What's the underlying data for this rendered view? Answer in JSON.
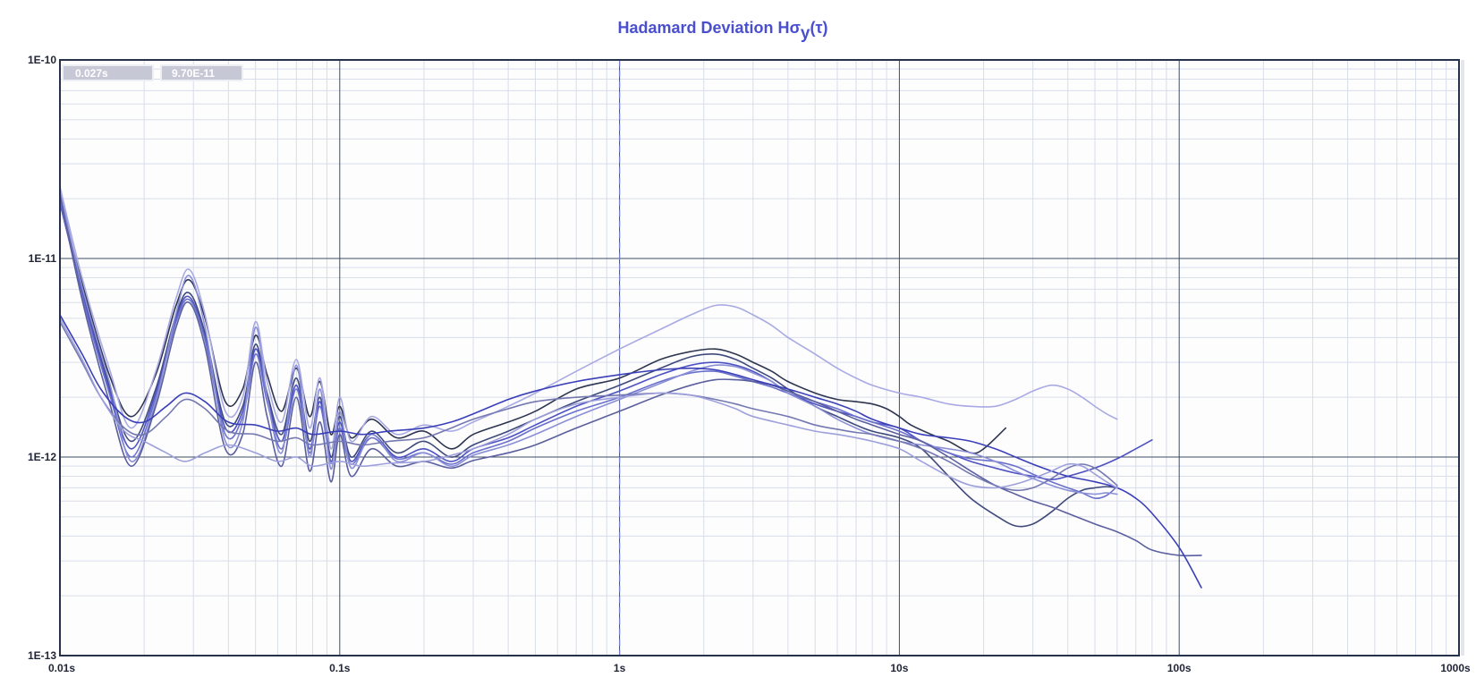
{
  "colors": {
    "title": "#4a4fd0",
    "plot_bg": "#fdfdfe",
    "major_grid": "#3d4d63",
    "minor_grid": "#d9dde9",
    "frame": "#27324a",
    "cursor": "#7a80c8",
    "readout_bg": "#c6c8d6",
    "readout_border": "#eeeff4",
    "series_palette": [
      "#2e3550",
      "#3f4a7a",
      "#4d52c2",
      "#6a70cc",
      "#8a8fd6",
      "#a9aae3",
      "#5b5f9e",
      "#3a3fb8",
      "#7478b0",
      "#9ea0dc",
      "#50557e",
      "#6466c6"
    ]
  },
  "readout": {
    "tau": "0.027s",
    "value": "9.70E-11"
  },
  "chart_data": {
    "type": "line",
    "title_main": "Hadamard Deviation H",
    "title_sigma": "σ",
    "title_sub": "y",
    "title_arg": "(τ)",
    "x_scale": "log",
    "y_scale": "log",
    "xlim": [
      0.01,
      1000
    ],
    "ylim": [
      1e-13,
      1e-10
    ],
    "x_ticks": [
      {
        "value": 0.01,
        "label": "0.01s"
      },
      {
        "value": 0.1,
        "label": "0.1s"
      },
      {
        "value": 1,
        "label": "1s"
      },
      {
        "value": 10,
        "label": "10s"
      },
      {
        "value": 100,
        "label": "100s"
      },
      {
        "value": 1000,
        "label": "1000s"
      }
    ],
    "y_ticks": [
      {
        "value": 1e-13,
        "label": "1E-13"
      },
      {
        "value": 1e-12,
        "label": "1E-12"
      },
      {
        "value": 1e-11,
        "label": "1E-11"
      },
      {
        "value": 1e-10,
        "label": "1E-10"
      }
    ],
    "grid": true,
    "cursor_x": 1,
    "series": [
      {
        "x": [
          0.01,
          0.012,
          0.015,
          0.018,
          0.022,
          0.026,
          0.029,
          0.033,
          0.039,
          0.045,
          0.05,
          0.055,
          0.062,
          0.07,
          0.078,
          0.085,
          0.093,
          0.1,
          0.11,
          0.13,
          0.16,
          0.2,
          0.25,
          0.3,
          0.4,
          0.5,
          0.7,
          1,
          1.4,
          1.8,
          2.2,
          2.6,
          3,
          3.5,
          4,
          5,
          6,
          7,
          8,
          9,
          10,
          11,
          13,
          15,
          18,
          20,
          24
        ],
        "y": [
          2e-11,
          7.5e-12,
          2.6e-12,
          1.6e-12,
          2.6e-12,
          5.8e-12,
          7.8e-12,
          5e-12,
          1.9e-12,
          2.2e-12,
          4.1e-12,
          2.6e-12,
          1.7e-12,
          2.8e-12,
          1.6e-12,
          2.4e-12,
          1.3e-12,
          1.8e-12,
          1.25e-12,
          1.55e-12,
          1.25e-12,
          1.35e-12,
          1.1e-12,
          1.3e-12,
          1.5e-12,
          1.7e-12,
          2.2e-12,
          2.5e-12,
          3.1e-12,
          3.4e-12,
          3.5e-12,
          3.3e-12,
          3e-12,
          2.7e-12,
          2.4e-12,
          2.1e-12,
          1.95e-12,
          1.9e-12,
          1.85e-12,
          1.75e-12,
          1.6e-12,
          1.45e-12,
          1.3e-12,
          1.2e-12,
          1.05e-12,
          1.1e-12,
          1.4e-12
        ]
      },
      {
        "x": [
          0.01,
          0.012,
          0.015,
          0.018,
          0.022,
          0.026,
          0.029,
          0.033,
          0.039,
          0.045,
          0.05,
          0.055,
          0.062,
          0.07,
          0.078,
          0.085,
          0.093,
          0.1,
          0.11,
          0.13,
          0.16,
          0.2,
          0.25,
          0.3,
          0.4,
          0.5,
          0.7,
          1,
          1.4,
          1.8,
          2.2,
          2.6,
          3,
          3.5,
          4,
          5,
          6,
          7,
          8,
          10,
          12,
          15,
          18,
          22,
          26,
          30,
          35,
          40,
          45,
          50,
          55,
          60
        ],
        "y": [
          2.1e-11,
          7e-12,
          2.3e-12,
          1.2e-12,
          2.2e-12,
          5.2e-12,
          6.7e-12,
          4.2e-12,
          1.5e-12,
          1.8e-12,
          3.7e-12,
          2.1e-12,
          1.3e-12,
          2.5e-12,
          1.2e-12,
          2e-12,
          1e-12,
          1.6e-12,
          1e-12,
          1.35e-12,
          1.05e-12,
          1.2e-12,
          1e-12,
          1.15e-12,
          1.35e-12,
          1.55e-12,
          1.9e-12,
          2.3e-12,
          2.8e-12,
          3.2e-12,
          3.3e-12,
          3.1e-12,
          2.8e-12,
          2.5e-12,
          2.2e-12,
          1.8e-12,
          1.6e-12,
          1.45e-12,
          1.35e-12,
          1.25e-12,
          1.1e-12,
          8e-13,
          6.2e-13,
          5.1e-13,
          4.5e-13,
          4.6e-13,
          5.3e-13,
          6.2e-13,
          6.8e-13,
          7e-13,
          7.1e-13,
          7e-13
        ]
      },
      {
        "x": [
          0.01,
          0.012,
          0.015,
          0.018,
          0.022,
          0.026,
          0.029,
          0.033,
          0.039,
          0.045,
          0.05,
          0.055,
          0.062,
          0.07,
          0.078,
          0.085,
          0.093,
          0.1,
          0.11,
          0.13,
          0.16,
          0.2,
          0.25,
          0.3,
          0.4,
          0.5,
          0.7,
          1,
          1.4,
          1.8,
          2.2,
          2.6,
          3,
          3.5,
          4,
          5,
          6,
          7,
          8,
          10,
          12,
          15,
          18,
          22,
          26,
          30,
          35,
          40,
          50,
          60,
          70,
          80
        ],
        "y": [
          1.9e-11,
          6.8e-12,
          2.2e-12,
          1.1e-12,
          2.1e-12,
          5e-12,
          6.4e-12,
          4e-12,
          1.4e-12,
          1.7e-12,
          3.5e-12,
          2e-12,
          1.2e-12,
          2.3e-12,
          1.1e-12,
          1.9e-12,
          9.5e-13,
          1.5e-12,
          9.5e-13,
          1.3e-12,
          1e-12,
          1.1e-12,
          9.5e-13,
          1.1e-12,
          1.25e-12,
          1.45e-12,
          1.8e-12,
          2.15e-12,
          2.6e-12,
          2.9e-12,
          3e-12,
          2.9e-12,
          2.7e-12,
          2.4e-12,
          2.1e-12,
          1.85e-12,
          1.7e-12,
          1.6e-12,
          1.5e-12,
          1.4e-12,
          1.2e-12,
          1.05e-12,
          9.5e-13,
          8.8e-13,
          8.3e-13,
          8e-13,
          7.7e-13,
          8e-13,
          8.8e-13,
          9.8e-13,
          1.1e-12,
          1.22e-12
        ]
      },
      {
        "x": [
          0.01,
          0.012,
          0.015,
          0.018,
          0.022,
          0.026,
          0.029,
          0.033,
          0.039,
          0.045,
          0.05,
          0.055,
          0.062,
          0.07,
          0.078,
          0.085,
          0.093,
          0.1,
          0.11,
          0.13,
          0.16,
          0.2,
          0.25,
          0.3,
          0.4,
          0.5,
          0.7,
          1,
          1.4,
          1.8,
          2.2,
          2.6,
          3,
          3.5,
          4,
          5,
          6,
          7,
          8,
          10,
          12,
          15,
          18,
          22,
          26,
          30,
          35,
          40,
          45,
          50,
          55,
          60
        ],
        "y": [
          2e-11,
          6.5e-12,
          2.1e-12,
          1e-12,
          2e-12,
          4.8e-12,
          6.2e-12,
          3.9e-12,
          1.3e-12,
          1.6e-12,
          3.3e-12,
          1.9e-12,
          1.1e-12,
          2.2e-12,
          1.05e-12,
          1.8e-12,
          9.3e-13,
          1.4e-12,
          9.2e-13,
          1.25e-12,
          9.8e-13,
          1.05e-12,
          9.2e-13,
          1.05e-12,
          1.2e-12,
          1.4e-12,
          1.7e-12,
          2e-12,
          2.4e-12,
          2.65e-12,
          2.7e-12,
          2.55e-12,
          2.4e-12,
          2.25e-12,
          2.1e-12,
          1.9e-12,
          1.75e-12,
          1.6e-12,
          1.5e-12,
          1.35e-12,
          1.2e-12,
          1.05e-12,
          9.8e-13,
          9.5e-13,
          9e-13,
          8.2e-13,
          7.5e-13,
          7e-13,
          6.6e-13,
          6.2e-13,
          6.4e-13,
          7.1e-13
        ]
      },
      {
        "x": [
          0.01,
          0.012,
          0.015,
          0.018,
          0.022,
          0.026,
          0.029,
          0.033,
          0.039,
          0.045,
          0.05,
          0.055,
          0.062,
          0.07,
          0.078,
          0.085,
          0.093,
          0.1,
          0.11,
          0.13,
          0.16,
          0.2,
          0.25,
          0.3,
          0.4,
          0.5,
          0.7,
          1,
          1.4,
          1.8,
          2.2,
          2.6,
          3,
          3.5,
          4,
          5,
          6,
          7,
          8,
          10,
          12,
          15,
          18,
          22,
          26,
          30,
          35,
          40,
          45,
          50,
          55,
          60
        ],
        "y": [
          2.2e-11,
          7.2e-12,
          2.4e-12,
          9.5e-13,
          1.9e-12,
          5.3e-12,
          8.2e-12,
          4.5e-12,
          1.2e-12,
          1.5e-12,
          4.5e-12,
          2e-12,
          1.05e-12,
          2.9e-12,
          1e-12,
          2.2e-12,
          8.7e-13,
          1.7e-12,
          8.8e-13,
          1.3e-12,
          9.5e-13,
          1.05e-12,
          9e-13,
          1.02e-12,
          1.15e-12,
          1.3e-12,
          1.6e-12,
          1.95e-12,
          2.35e-12,
          2.7e-12,
          2.9e-12,
          2.85e-12,
          2.65e-12,
          2.4e-12,
          2.1e-12,
          1.8e-12,
          1.55e-12,
          1.4e-12,
          1.3e-12,
          1.2e-12,
          1.15e-12,
          1.1e-12,
          1.05e-12,
          9.5e-13,
          8.5e-13,
          7.8e-13,
          7.2e-13,
          6.8e-13,
          6.6e-13,
          6.5e-13,
          6.6e-13,
          6.5e-13
        ]
      },
      {
        "x": [
          0.01,
          0.012,
          0.015,
          0.018,
          0.022,
          0.026,
          0.029,
          0.033,
          0.039,
          0.045,
          0.05,
          0.055,
          0.062,
          0.07,
          0.078,
          0.085,
          0.093,
          0.1,
          0.11,
          0.13,
          0.16,
          0.2,
          0.25,
          0.3,
          0.4,
          0.5,
          0.7,
          1,
          1.4,
          1.8,
          2.2,
          2.6,
          3,
          3.5,
          4,
          5,
          6,
          7,
          8,
          10,
          12,
          15,
          18,
          22,
          26,
          30,
          35,
          40,
          45,
          50,
          55,
          60
        ],
        "y": [
          2.3e-11,
          8e-12,
          2.8e-12,
          1.4e-12,
          2.7e-12,
          6.3e-12,
          8.8e-12,
          5.2e-12,
          1.7e-12,
          2e-12,
          4.8e-12,
          2.4e-12,
          1.5e-12,
          3.1e-12,
          1.4e-12,
          2.5e-12,
          1.1e-12,
          2e-12,
          1.2e-12,
          1.6e-12,
          1.3e-12,
          1.45e-12,
          1.35e-12,
          1.5e-12,
          1.8e-12,
          2.1e-12,
          2.7e-12,
          3.5e-12,
          4.4e-12,
          5.2e-12,
          5.8e-12,
          5.7e-12,
          5.2e-12,
          4.6e-12,
          4e-12,
          3.3e-12,
          2.8e-12,
          2.5e-12,
          2.3e-12,
          2.1e-12,
          2e-12,
          1.85e-12,
          1.8e-12,
          1.8e-12,
          1.95e-12,
          2.15e-12,
          2.3e-12,
          2.2e-12,
          2e-12,
          1.8e-12,
          1.65e-12,
          1.55e-12
        ]
      },
      {
        "x": [
          0.01,
          0.012,
          0.015,
          0.018,
          0.022,
          0.026,
          0.029,
          0.033,
          0.039,
          0.045,
          0.05,
          0.055,
          0.062,
          0.07,
          0.078,
          0.085,
          0.093,
          0.1,
          0.11,
          0.13,
          0.16,
          0.2,
          0.25,
          0.3,
          0.4,
          0.5,
          0.7,
          1,
          1.4,
          1.8,
          2.2,
          2.6,
          3,
          3.5,
          4,
          5,
          6,
          7,
          8,
          10,
          12,
          15,
          18,
          22,
          26,
          30,
          35,
          40,
          50,
          60,
          70,
          80,
          100,
          120
        ],
        "y": [
          2.1e-11,
          6.2e-12,
          1.9e-12,
          9e-13,
          1.8e-12,
          4.5e-12,
          6e-12,
          3.6e-12,
          1.1e-12,
          1.3e-12,
          3e-12,
          1.6e-12,
          9e-13,
          2e-12,
          8.5e-13,
          1.5e-12,
          7.5e-13,
          1.3e-12,
          8e-13,
          1.1e-12,
          9e-13,
          9.5e-13,
          8.8e-13,
          9.6e-13,
          1.05e-12,
          1.15e-12,
          1.4e-12,
          1.7e-12,
          2.05e-12,
          2.3e-12,
          2.45e-12,
          2.45e-12,
          2.4e-12,
          2.3e-12,
          2.15e-12,
          1.9e-12,
          1.7e-12,
          1.55e-12,
          1.45e-12,
          1.3e-12,
          1.2e-12,
          1e-12,
          8.5e-13,
          7.2e-13,
          6.5e-13,
          6e-13,
          5.6e-13,
          5.2e-13,
          4.6e-13,
          4.2e-13,
          3.8e-13,
          3.4e-13,
          3.2e-13,
          3.2e-13
        ]
      },
      {
        "x": [
          0.01,
          0.012,
          0.014,
          0.017,
          0.02,
          0.024,
          0.028,
          0.033,
          0.04,
          0.05,
          0.06,
          0.07,
          0.08,
          0.1,
          0.12,
          0.15,
          0.2,
          0.25,
          0.3,
          0.4,
          0.5,
          0.7,
          1,
          1.4,
          1.8,
          2.2,
          2.6,
          3,
          4,
          5,
          6,
          7,
          8,
          10,
          12,
          15,
          18,
          22,
          26,
          30,
          35,
          40,
          50,
          60,
          70,
          80,
          100,
          120
        ],
        "y": [
          5.2e-12,
          3.3e-12,
          2.2e-12,
          1.6e-12,
          1.5e-12,
          1.8e-12,
          2.1e-12,
          1.9e-12,
          1.5e-12,
          1.45e-12,
          1.35e-12,
          1.4e-12,
          1.3e-12,
          1.35e-12,
          1.3e-12,
          1.35e-12,
          1.4e-12,
          1.5e-12,
          1.65e-12,
          1.95e-12,
          2.15e-12,
          2.4e-12,
          2.6e-12,
          2.75e-12,
          2.8e-12,
          2.75e-12,
          2.6e-12,
          2.45e-12,
          2.2e-12,
          2e-12,
          1.85e-12,
          1.7e-12,
          1.55e-12,
          1.4e-12,
          1.3e-12,
          1.25e-12,
          1.2e-12,
          1.1e-12,
          1e-12,
          9.2e-13,
          8.5e-13,
          8e-13,
          7.5e-13,
          7e-13,
          6.2e-13,
          5.2e-13,
          3.5e-13,
          2.2e-13
        ]
      },
      {
        "x": [
          0.01,
          0.012,
          0.014,
          0.017,
          0.02,
          0.024,
          0.028,
          0.033,
          0.04,
          0.05,
          0.06,
          0.07,
          0.08,
          0.1,
          0.12,
          0.15,
          0.2,
          0.25,
          0.3,
          0.4,
          0.5,
          0.7,
          1,
          1.4,
          1.8,
          2.2,
          2.6,
          3,
          4,
          5,
          6,
          7,
          8,
          10,
          12,
          15,
          18,
          22,
          26,
          30,
          35,
          40,
          45,
          50,
          55,
          60
        ],
        "y": [
          4.8e-12,
          3e-12,
          2e-12,
          1.4e-12,
          1.3e-12,
          1.6e-12,
          1.95e-12,
          1.75e-12,
          1.35e-12,
          1.3e-12,
          1.2e-12,
          1.25e-12,
          1.15e-12,
          1.2e-12,
          1.15e-12,
          1.2e-12,
          1.25e-12,
          1.4e-12,
          1.55e-12,
          1.75e-12,
          1.9e-12,
          2e-12,
          2.05e-12,
          2.1e-12,
          2.05e-12,
          1.95e-12,
          1.85e-12,
          1.75e-12,
          1.6e-12,
          1.45e-12,
          1.38e-12,
          1.33e-12,
          1.3e-12,
          1.2e-12,
          1.1e-12,
          9.5e-13,
          8.2e-13,
          7.2e-13,
          6.8e-13,
          7e-13,
          7.8e-13,
          8.8e-13,
          9.2e-13,
          8.8e-13,
          8e-13,
          7.2e-13
        ]
      },
      {
        "x": [
          0.01,
          0.012,
          0.014,
          0.017,
          0.02,
          0.024,
          0.028,
          0.033,
          0.04,
          0.05,
          0.06,
          0.07,
          0.08,
          0.1,
          0.12,
          0.15,
          0.2,
          0.25,
          0.3,
          0.4,
          0.5,
          0.7,
          1,
          1.4,
          1.8,
          2.2,
          2.6,
          3,
          4,
          5,
          6,
          7,
          8,
          10,
          12,
          15,
          18,
          22,
          26,
          30,
          35,
          40,
          45,
          50,
          55,
          60
        ],
        "y": [
          5e-12,
          3.1e-12,
          2e-12,
          1.35e-12,
          1.2e-12,
          1.05e-12,
          9.5e-13,
          1.05e-12,
          1.15e-12,
          1.05e-12,
          9.5e-13,
          1e-12,
          9e-13,
          9.5e-13,
          9e-13,
          9.3e-13,
          9.5e-13,
          1.02e-12,
          1.1e-12,
          1.3e-12,
          1.55e-12,
          1.85e-12,
          2e-12,
          2.1e-12,
          2.05e-12,
          1.9e-12,
          1.75e-12,
          1.6e-12,
          1.45e-12,
          1.35e-12,
          1.3e-12,
          1.25e-12,
          1.2e-12,
          1.1e-12,
          9.5e-13,
          8e-13,
          7.2e-13,
          7e-13,
          7.3e-13,
          7.8e-13,
          8.5e-13,
          9.2e-13,
          9e-13,
          8.2e-13,
          7.5e-13,
          7e-13
        ]
      }
    ]
  }
}
